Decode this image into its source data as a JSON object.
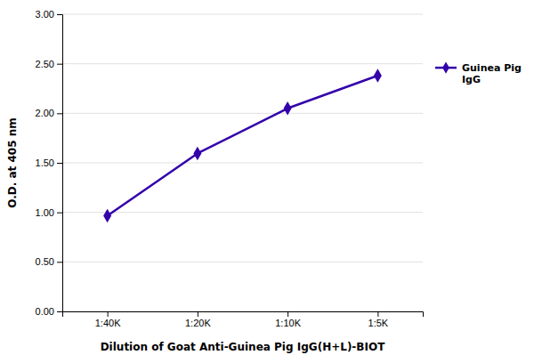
{
  "chart_data": {
    "type": "line",
    "xlabel": "Dilution of Goat Anti-Guinea Pig IgG(H+L)-BIOT",
    "ylabel": "O.D. at 405 nm",
    "categories": [
      "1:40K",
      "1:20K",
      "1:10K",
      "1:5K"
    ],
    "series": [
      {
        "name": "Guinea Pig\nIgG",
        "color": "#3300AA",
        "marker": "diamond",
        "values": [
          0.965,
          1.595,
          2.05,
          2.38
        ]
      }
    ],
    "ylim": [
      0,
      3.0
    ],
    "yticks": [
      {
        "value": 0.0,
        "label": "0.00"
      },
      {
        "value": 0.5,
        "label": "0.50"
      },
      {
        "value": 1.0,
        "label": "1.00"
      },
      {
        "value": 1.5,
        "label": "1.50"
      },
      {
        "value": 2.0,
        "label": "2.00"
      },
      {
        "value": 2.5,
        "label": "2.50"
      },
      {
        "value": 3.0,
        "label": "3.00"
      }
    ],
    "grid": true,
    "legend": "right"
  }
}
